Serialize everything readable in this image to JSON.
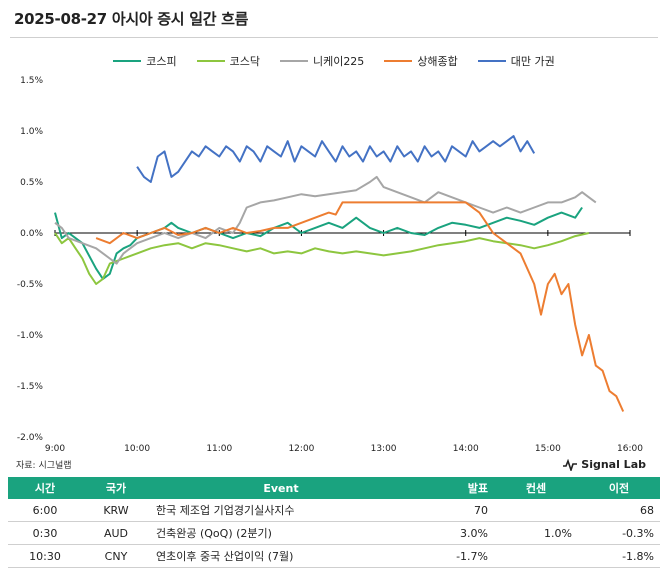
{
  "title": "2025-08-27 아시아 증시 일간 흐름",
  "source": "자료: 시그널랩",
  "brand": "Signal Lab",
  "chart_data": {
    "type": "line",
    "x_ticks": [
      "9:00",
      "10:00",
      "11:00",
      "12:00",
      "13:00",
      "14:00",
      "15:00",
      "16:00"
    ],
    "y_ticks": [
      "1.5%",
      "1.0%",
      "0.5%",
      "0.0%",
      "-0.5%",
      "-1.0%",
      "-1.5%",
      "-2.0%"
    ],
    "ylim": [
      -2.0,
      1.5
    ],
    "xlim": [
      "9:00",
      "16:00"
    ],
    "legend_position": "top-center",
    "series": [
      {
        "name": "코스피",
        "color": "#1aa37f",
        "points": [
          [
            "9:00",
            0.2
          ],
          [
            "9:05",
            -0.05
          ],
          [
            "9:10",
            0.0
          ],
          [
            "9:15",
            -0.05
          ],
          [
            "9:20",
            -0.1
          ],
          [
            "9:30",
            -0.35
          ],
          [
            "9:35",
            -0.45
          ],
          [
            "9:40",
            -0.4
          ],
          [
            "9:45",
            -0.2
          ],
          [
            "9:50",
            -0.15
          ],
          [
            "9:55",
            -0.12
          ],
          [
            "10:00",
            -0.05
          ],
          [
            "10:10",
            0.0
          ],
          [
            "10:20",
            0.05
          ],
          [
            "10:25",
            0.1
          ],
          [
            "10:30",
            0.05
          ],
          [
            "10:40",
            0.0
          ],
          [
            "10:50",
            0.05
          ],
          [
            "11:00",
            0.0
          ],
          [
            "11:10",
            -0.05
          ],
          [
            "11:20",
            0.0
          ],
          [
            "11:30",
            -0.03
          ],
          [
            "11:40",
            0.05
          ],
          [
            "11:50",
            0.1
          ],
          [
            "12:00",
            0.0
          ],
          [
            "12:10",
            0.05
          ],
          [
            "12:20",
            0.1
          ],
          [
            "12:30",
            0.05
          ],
          [
            "12:40",
            0.15
          ],
          [
            "12:50",
            0.05
          ],
          [
            "13:00",
            0.0
          ],
          [
            "13:10",
            0.05
          ],
          [
            "13:20",
            0.0
          ],
          [
            "13:30",
            -0.02
          ],
          [
            "13:40",
            0.05
          ],
          [
            "13:50",
            0.1
          ],
          [
            "14:00",
            0.08
          ],
          [
            "14:10",
            0.05
          ],
          [
            "14:20",
            0.1
          ],
          [
            "14:30",
            0.15
          ],
          [
            "14:40",
            0.12
          ],
          [
            "14:50",
            0.08
          ],
          [
            "15:00",
            0.15
          ],
          [
            "15:10",
            0.2
          ],
          [
            "15:20",
            0.15
          ],
          [
            "15:25",
            0.25
          ]
        ]
      },
      {
        "name": "코스닥",
        "color": "#8dc63f",
        "points": [
          [
            "9:00",
            0.0
          ],
          [
            "9:05",
            -0.1
          ],
          [
            "9:10",
            -0.05
          ],
          [
            "9:15",
            -0.15
          ],
          [
            "9:20",
            -0.25
          ],
          [
            "9:25",
            -0.4
          ],
          [
            "9:30",
            -0.5
          ],
          [
            "9:35",
            -0.45
          ],
          [
            "9:40",
            -0.3
          ],
          [
            "9:50",
            -0.25
          ],
          [
            "10:00",
            -0.2
          ],
          [
            "10:10",
            -0.15
          ],
          [
            "10:20",
            -0.12
          ],
          [
            "10:30",
            -0.1
          ],
          [
            "10:40",
            -0.15
          ],
          [
            "10:50",
            -0.1
          ],
          [
            "11:00",
            -0.12
          ],
          [
            "11:10",
            -0.15
          ],
          [
            "11:20",
            -0.18
          ],
          [
            "11:30",
            -0.15
          ],
          [
            "11:40",
            -0.2
          ],
          [
            "11:50",
            -0.18
          ],
          [
            "12:00",
            -0.2
          ],
          [
            "12:10",
            -0.15
          ],
          [
            "12:20",
            -0.18
          ],
          [
            "12:30",
            -0.2
          ],
          [
            "12:40",
            -0.18
          ],
          [
            "12:50",
            -0.2
          ],
          [
            "13:00",
            -0.22
          ],
          [
            "13:10",
            -0.2
          ],
          [
            "13:20",
            -0.18
          ],
          [
            "13:30",
            -0.15
          ],
          [
            "13:40",
            -0.12
          ],
          [
            "13:50",
            -0.1
          ],
          [
            "14:00",
            -0.08
          ],
          [
            "14:10",
            -0.05
          ],
          [
            "14:20",
            -0.08
          ],
          [
            "14:30",
            -0.1
          ],
          [
            "14:40",
            -0.12
          ],
          [
            "14:50",
            -0.15
          ],
          [
            "15:00",
            -0.12
          ],
          [
            "15:10",
            -0.08
          ],
          [
            "15:20",
            -0.03
          ],
          [
            "15:30",
            0.0
          ]
        ]
      },
      {
        "name": "니케이225",
        "color": "#a6a6a6",
        "points": [
          [
            "9:00",
            0.1
          ],
          [
            "9:05",
            0.05
          ],
          [
            "9:10",
            -0.05
          ],
          [
            "9:20",
            -0.1
          ],
          [
            "9:30",
            -0.15
          ],
          [
            "9:40",
            -0.25
          ],
          [
            "9:45",
            -0.3
          ],
          [
            "9:50",
            -0.2
          ],
          [
            "10:00",
            -0.1
          ],
          [
            "10:10",
            -0.05
          ],
          [
            "10:20",
            0.0
          ],
          [
            "10:30",
            -0.05
          ],
          [
            "10:40",
            0.0
          ],
          [
            "10:50",
            -0.05
          ],
          [
            "11:00",
            0.05
          ],
          [
            "11:10",
            0.0
          ],
          [
            "11:15",
            0.1
          ],
          [
            "11:20",
            0.25
          ],
          [
            "11:30",
            0.3
          ],
          [
            "11:40",
            0.32
          ],
          [
            "11:50",
            0.35
          ],
          [
            "12:00",
            0.38
          ],
          [
            "12:10",
            0.36
          ],
          [
            "12:20",
            0.38
          ],
          [
            "12:30",
            0.4
          ],
          [
            "12:40",
            0.42
          ],
          [
            "12:50",
            0.5
          ],
          [
            "12:55",
            0.55
          ],
          [
            "13:00",
            0.45
          ],
          [
            "13:10",
            0.4
          ],
          [
            "13:20",
            0.35
          ],
          [
            "13:30",
            0.3
          ],
          [
            "13:40",
            0.4
          ],
          [
            "13:50",
            0.35
          ],
          [
            "14:00",
            0.3
          ],
          [
            "14:10",
            0.25
          ],
          [
            "14:20",
            0.2
          ],
          [
            "14:30",
            0.25
          ],
          [
            "14:40",
            0.2
          ],
          [
            "14:50",
            0.25
          ],
          [
            "15:00",
            0.3
          ],
          [
            "15:10",
            0.3
          ],
          [
            "15:20",
            0.35
          ],
          [
            "15:25",
            0.4
          ],
          [
            "15:30",
            0.35
          ],
          [
            "15:35",
            0.3
          ]
        ]
      },
      {
        "name": "상해종합",
        "color": "#ed7d31",
        "points": [
          [
            "9:30",
            -0.05
          ],
          [
            "9:40",
            -0.1
          ],
          [
            "9:50",
            0.0
          ],
          [
            "10:00",
            -0.05
          ],
          [
            "10:10",
            0.0
          ],
          [
            "10:20",
            0.05
          ],
          [
            "10:30",
            -0.02
          ],
          [
            "10:40",
            0.0
          ],
          [
            "10:50",
            0.05
          ],
          [
            "11:00",
            0.0
          ],
          [
            "11:10",
            0.05
          ],
          [
            "11:20",
            0.0
          ],
          [
            "11:30",
            0.02
          ],
          [
            "11:40",
            0.05
          ],
          [
            "11:50",
            0.05
          ],
          [
            "12:00",
            0.1
          ],
          [
            "12:10",
            0.15
          ],
          [
            "12:20",
            0.2
          ],
          [
            "12:25",
            0.18
          ],
          [
            "12:30",
            0.3
          ],
          [
            "13:00",
            0.3
          ],
          [
            "13:20",
            0.3
          ],
          [
            "13:40",
            0.3
          ],
          [
            "14:00",
            0.3
          ],
          [
            "14:10",
            0.2
          ],
          [
            "14:15",
            0.1
          ],
          [
            "14:20",
            0.0
          ],
          [
            "14:30",
            -0.1
          ],
          [
            "14:40",
            -0.2
          ],
          [
            "14:50",
            -0.5
          ],
          [
            "14:55",
            -0.8
          ],
          [
            "15:00",
            -0.5
          ],
          [
            "15:05",
            -0.4
          ],
          [
            "15:10",
            -0.6
          ],
          [
            "15:15",
            -0.5
          ],
          [
            "15:20",
            -0.9
          ],
          [
            "15:25",
            -1.2
          ],
          [
            "15:30",
            -1.0
          ],
          [
            "15:35",
            -1.3
          ],
          [
            "15:40",
            -1.35
          ],
          [
            "15:45",
            -1.55
          ],
          [
            "15:50",
            -1.6
          ],
          [
            "15:55",
            -1.75
          ]
        ]
      },
      {
        "name": "대만 가권",
        "color": "#4472c4",
        "points": [
          [
            "10:00",
            0.65
          ],
          [
            "10:05",
            0.55
          ],
          [
            "10:10",
            0.5
          ],
          [
            "10:15",
            0.75
          ],
          [
            "10:20",
            0.8
          ],
          [
            "10:25",
            0.55
          ],
          [
            "10:30",
            0.6
          ],
          [
            "10:35",
            0.7
          ],
          [
            "10:40",
            0.8
          ],
          [
            "10:45",
            0.75
          ],
          [
            "10:50",
            0.85
          ],
          [
            "10:55",
            0.8
          ],
          [
            "11:00",
            0.75
          ],
          [
            "11:05",
            0.85
          ],
          [
            "11:10",
            0.8
          ],
          [
            "11:15",
            0.7
          ],
          [
            "11:20",
            0.85
          ],
          [
            "11:25",
            0.8
          ],
          [
            "11:30",
            0.7
          ],
          [
            "11:35",
            0.85
          ],
          [
            "11:40",
            0.8
          ],
          [
            "11:45",
            0.75
          ],
          [
            "11:50",
            0.9
          ],
          [
            "11:55",
            0.7
          ],
          [
            "12:00",
            0.85
          ],
          [
            "12:05",
            0.8
          ],
          [
            "12:10",
            0.75
          ],
          [
            "12:15",
            0.9
          ],
          [
            "12:20",
            0.8
          ],
          [
            "12:25",
            0.7
          ],
          [
            "12:30",
            0.85
          ],
          [
            "12:35",
            0.75
          ],
          [
            "12:40",
            0.8
          ],
          [
            "12:45",
            0.7
          ],
          [
            "12:50",
            0.85
          ],
          [
            "12:55",
            0.75
          ],
          [
            "13:00",
            0.8
          ],
          [
            "13:05",
            0.7
          ],
          [
            "13:10",
            0.85
          ],
          [
            "13:15",
            0.75
          ],
          [
            "13:20",
            0.8
          ],
          [
            "13:25",
            0.7
          ],
          [
            "13:30",
            0.85
          ],
          [
            "13:35",
            0.75
          ],
          [
            "13:40",
            0.8
          ],
          [
            "13:45",
            0.7
          ],
          [
            "13:50",
            0.85
          ],
          [
            "13:55",
            0.8
          ],
          [
            "14:00",
            0.75
          ],
          [
            "14:05",
            0.9
          ],
          [
            "14:10",
            0.8
          ],
          [
            "14:15",
            0.85
          ],
          [
            "14:20",
            0.9
          ],
          [
            "14:25",
            0.85
          ],
          [
            "14:30",
            0.9
          ],
          [
            "14:35",
            0.95
          ],
          [
            "14:40",
            0.8
          ],
          [
            "14:45",
            0.9
          ],
          [
            "14:50",
            0.78
          ]
        ]
      }
    ]
  },
  "table": {
    "headers": [
      "시간",
      "국가",
      "Event",
      "발표",
      "컨센",
      "이전"
    ],
    "rows": [
      [
        "6:00",
        "KRW",
        "한국 제조업 기업경기실사지수",
        "70",
        "",
        "68"
      ],
      [
        "0:30",
        "AUD",
        "건축완공 (QoQ) (2분기)",
        "3.0%",
        "1.0%",
        "-0.3%"
      ],
      [
        "10:30",
        "CNY",
        "연초이후 중국 산업이익 (7월)",
        "-1.7%",
        "",
        "-1.8%"
      ]
    ]
  }
}
